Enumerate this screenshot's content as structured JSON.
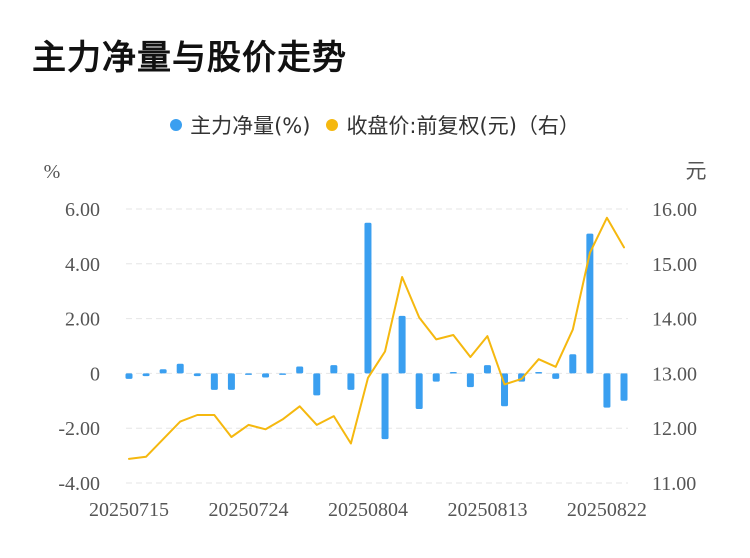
{
  "title": "主力净量与股价走势",
  "colors": {
    "bar": "#3a9ff0",
    "line": "#f5b80f",
    "grid": "#e6e6e6",
    "axis_text": "#555555"
  },
  "chart_data": {
    "type": "bar+line",
    "legend": [
      {
        "name": "主力净量(%)",
        "color": "#3a9ff0"
      },
      {
        "name": "收盘价:前复权(元)（右）",
        "color": "#f5b80f"
      }
    ],
    "left_axis": {
      "unit": "%",
      "ticks": [
        "6.00",
        "4.00",
        "2.00",
        "0",
        "-2.00",
        "-4.00"
      ],
      "range": [
        -4,
        6
      ]
    },
    "right_axis": {
      "unit": "元",
      "ticks": [
        "16.00",
        "15.00",
        "14.00",
        "13.00",
        "12.00",
        "11.00"
      ],
      "range": [
        11,
        16
      ]
    },
    "x_tick_labels": [
      "20250715",
      "20250724",
      "20250804",
      "20250813",
      "20250822"
    ],
    "x_tick_index": [
      0,
      7,
      14,
      21,
      28
    ],
    "grid": true,
    "series": [
      {
        "name": "主力净量(%)",
        "type": "bar",
        "values": [
          -0.2,
          -0.1,
          0.15,
          0.35,
          -0.1,
          -0.6,
          -0.6,
          -0.05,
          -0.15,
          0.0,
          0.25,
          -0.8,
          0.3,
          -0.6,
          5.5,
          -2.4,
          2.1,
          -1.3,
          -0.3,
          0.05,
          -0.5,
          0.3,
          -1.2,
          -0.3,
          0.05,
          -0.2,
          0.7,
          5.1,
          -1.25,
          -1.0
        ]
      },
      {
        "name": "收盘价:前复权(元)（右）",
        "type": "line",
        "values": [
          11.44,
          11.48,
          11.8,
          12.12,
          12.24,
          12.24,
          11.84,
          12.06,
          11.98,
          12.16,
          12.4,
          12.06,
          12.22,
          11.72,
          12.92,
          13.4,
          14.76,
          14.02,
          13.62,
          13.7,
          13.3,
          13.68,
          12.8,
          12.9,
          13.26,
          13.12,
          13.8,
          15.2,
          15.84,
          15.3
        ]
      }
    ]
  }
}
